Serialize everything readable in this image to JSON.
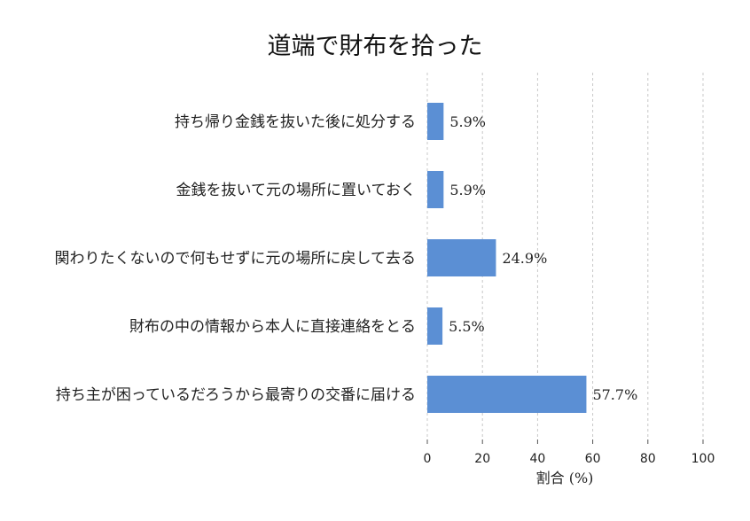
{
  "chart_data": {
    "type": "bar",
    "orientation": "horizontal",
    "title": "道端で財布を拾った",
    "xlabel": "割合 (%)",
    "ylabel": "",
    "xlim": [
      0,
      100
    ],
    "xticks": [
      0,
      20,
      40,
      60,
      80,
      100
    ],
    "grid": true,
    "bar_color": "#5b8fd4",
    "categories": [
      "持ち帰り金銭を抜いた後に処分する",
      "金銭を抜いて元の場所に置いておく",
      "関わりたくないので何もせずに元の場所に戻して去る",
      "財布の中の情報から本人に直接連絡をとる",
      "持ち主が困っているだろうから最寄りの交番に届ける"
    ],
    "values": [
      5.9,
      5.9,
      24.9,
      5.5,
      57.7
    ],
    "value_labels": [
      "5.9%",
      "5.9%",
      "24.9%",
      "5.5%",
      "57.7%"
    ]
  }
}
